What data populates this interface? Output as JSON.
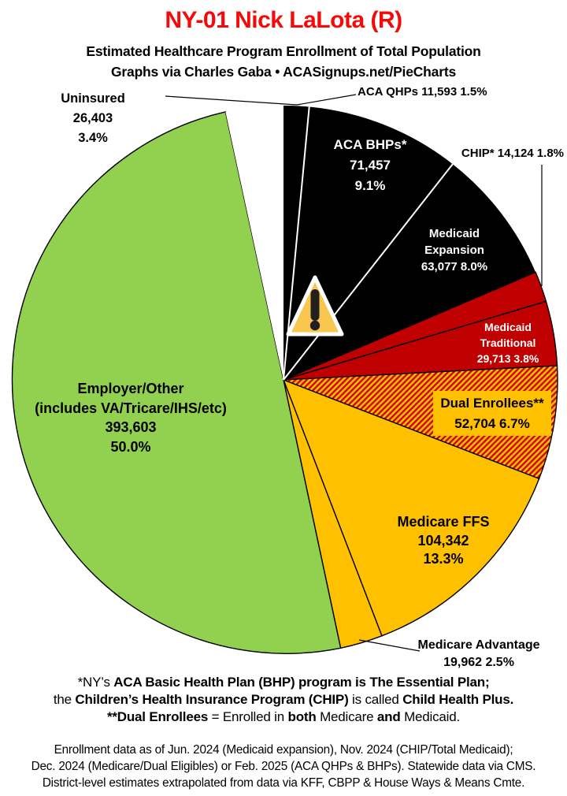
{
  "header": {
    "title": "NY-01 Nick LaLota (R)",
    "subtitle": "Estimated Healthcare Program Enrollment of Total Population",
    "byline": "Graphs via Charles Gaba   •   ACASignups.net/PieCharts"
  },
  "colors": {
    "title_red": "#F60909",
    "pie_black": "#000000",
    "medicaid_red": "#C00000",
    "medicare_gold": "#FFC000",
    "employer_green": "#92D050",
    "uninsured_white": "#FFFFFF",
    "hatch_stripe_red": "#D40000",
    "warning_amber": "#F9C750"
  },
  "chart_data": {
    "type": "pie",
    "title": "NY-01 Nick LaLota (R)",
    "subtitle": "Estimated Healthcare Program Enrollment of Total Population",
    "start_angle_deg": 0,
    "direction": "clockwise",
    "legend_position": "none",
    "hatch_bg": "#FFC000",
    "hatch_stripe": "#D40000",
    "segments": [
      {
        "name": "ACA QHPs",
        "value": 11593,
        "pct": 1.5,
        "color": "#000000"
      },
      {
        "name": "ACA BHPs*",
        "value": 71457,
        "pct": 9.1,
        "color": "#000000"
      },
      {
        "name": "Medicaid Expansion",
        "value": 63077,
        "pct": 8.0,
        "color": "#000000"
      },
      {
        "name": "CHIP*",
        "value": 14124,
        "pct": 1.8,
        "color": "#C00000"
      },
      {
        "name": "Medicaid Traditional",
        "value": 29713,
        "pct": 3.8,
        "color": "#C00000"
      },
      {
        "name": "Dual Enrollees**",
        "value": 52704,
        "pct": 6.7,
        "color": "hatch"
      },
      {
        "name": "Medicare FFS",
        "value": 104342,
        "pct": 13.3,
        "color": "#FFC000"
      },
      {
        "name": "Medicare Advantage",
        "value": 19962,
        "pct": 2.5,
        "color": "#FFC000"
      },
      {
        "name": "Employer/Other (includes VA/Tricare/IHS/etc)",
        "value": 393603,
        "pct": 50.0,
        "color": "#92D050"
      },
      {
        "name": "Uninsured",
        "value": 26403,
        "pct": 3.4,
        "color": "#FFFFFF"
      }
    ]
  },
  "labels": {
    "uninsured": {
      "lines": [
        "Uninsured",
        "26,403",
        "3.4%"
      ]
    },
    "aca_qhps": {
      "text": "ACA QHPs 11,593 1.5%"
    },
    "aca_bhps": {
      "lines": [
        "ACA BHPs*",
        "71,457",
        "9.1%"
      ]
    },
    "chip": {
      "text": "CHIP* 14,124 1.8%"
    },
    "medicaid_expansion": {
      "lines": [
        "Medicaid",
        "Expansion",
        "63,077 8.0%"
      ]
    },
    "medicaid_traditional": {
      "lines": [
        "Medicaid",
        "Traditional",
        "29,713 3.8%"
      ]
    },
    "dual_enrollees": {
      "lines": [
        "Dual Enrollees**",
        "52,704 6.7%"
      ]
    },
    "medicare_ffs": {
      "lines": [
        "Medicare FFS",
        "104,342",
        "13.3%"
      ]
    },
    "medicare_advantage": {
      "lines": [
        "Medicare Advantage",
        "19,962 2.5%"
      ]
    },
    "employer_other": {
      "lines": [
        "Employer/Other",
        "(includes VA/Tricare/IHS/etc)",
        "393,603",
        "50.0%"
      ]
    }
  },
  "footnotes": {
    "program_notes": [
      [
        {
          "t": "*NY’s ",
          "b": false
        },
        {
          "t": "ACA Basic Health Plan (BHP) program is The Essential Plan;",
          "b": true
        }
      ],
      [
        {
          "t": "the ",
          "b": false
        },
        {
          "t": "Children’s Health Insurance Program (CHIP)",
          "b": true
        },
        {
          "t": " is called ",
          "b": false
        },
        {
          "t": "Child Health Plus.",
          "b": true
        }
      ],
      [
        {
          "t": "**Dual Enrollees",
          "b": true
        },
        {
          "t": " = Enrolled in ",
          "b": false
        },
        {
          "t": "both",
          "b": true
        },
        {
          "t": " Medicare ",
          "b": false
        },
        {
          "t": "and",
          "b": true
        },
        {
          "t": " Medicaid.",
          "b": false
        }
      ]
    ],
    "data_notes": [
      "Enrollment data as of Jun. 2024 (Medicaid expansion), Nov. 2024 (CHIP/Total Medicaid);",
      "Dec. 2024 (Medicare/Dual Eligibles) or Feb. 2025 (ACA QHPs & BHPs). Statewide data via CMS.",
      "District-level estimates extrapolated from data via KFF, CBPP & House Ways & Means Cmte."
    ]
  }
}
